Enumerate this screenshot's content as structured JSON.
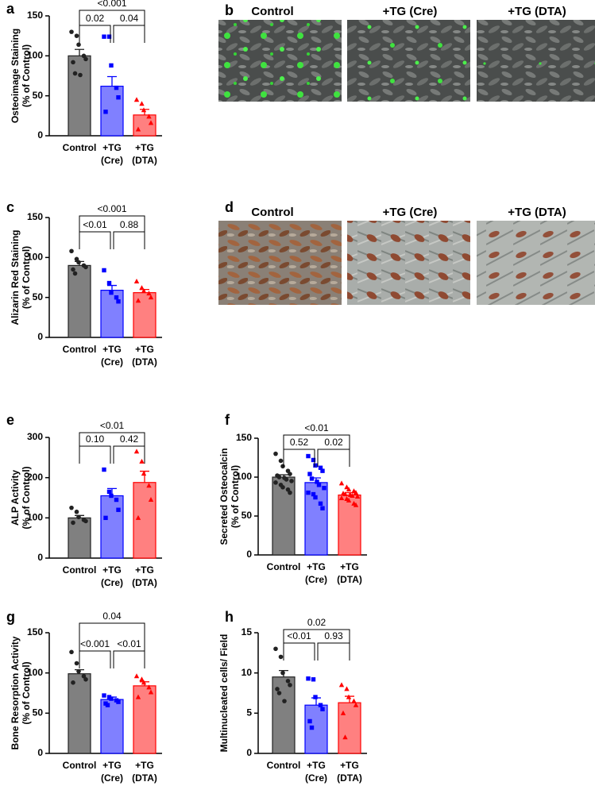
{
  "chart_data": [
    {
      "type": "bar",
      "panel": "a",
      "ylabel": [
        "Osteoimage Staining",
        "(% of Control)"
      ],
      "categories": [
        [
          "Control"
        ],
        [
          "+TG",
          "(Cre)"
        ],
        [
          "+TG",
          "(DTA)"
        ]
      ],
      "values": [
        100,
        62,
        26
      ],
      "errors": [
        8,
        12,
        7
      ],
      "points": [
        [
          130,
          125,
          114,
          100,
          96,
          92,
          78,
          76
        ],
        [
          124,
          124,
          88,
          60,
          48,
          30
        ],
        [
          45,
          40,
          32,
          24,
          16,
          8
        ]
      ],
      "colors": [
        "#808080",
        "#8080ff",
        "#ff8080"
      ],
      "edge_colors": [
        "#222222",
        "#0000ff",
        "#ff0000"
      ],
      "markers": [
        "circle",
        "square",
        "triangle"
      ],
      "comparisons": [
        "0.02",
        "0.04",
        "<0.001"
      ],
      "ylim": [
        0,
        150
      ],
      "yticks": [
        0,
        50,
        100,
        150
      ]
    },
    {
      "type": "bar",
      "panel": "c",
      "ylabel": [
        "Alizarin Red Staining",
        "(% of Control)"
      ],
      "categories": [
        [
          "Control"
        ],
        [
          "+TG",
          "(Cre)"
        ],
        [
          "+TG",
          "(DTA)"
        ]
      ],
      "values": [
        90,
        59,
        56
      ],
      "errors": [
        5,
        6,
        4
      ],
      "points": [
        [
          108,
          98,
          94,
          90,
          88,
          85,
          80
        ],
        [
          84,
          68,
          56,
          50,
          45
        ],
        [
          70,
          62,
          58,
          55,
          50,
          46
        ]
      ],
      "colors": [
        "#808080",
        "#8080ff",
        "#ff8080"
      ],
      "edge_colors": [
        "#222222",
        "#0000ff",
        "#ff0000"
      ],
      "markers": [
        "circle",
        "square",
        "triangle"
      ],
      "comparisons": [
        "<0.01",
        "0.88",
        "<0.001"
      ],
      "ylim": [
        0,
        150
      ],
      "yticks": [
        0,
        50,
        100,
        150
      ]
    },
    {
      "type": "bar",
      "panel": "e",
      "ylabel": [
        "ALP Activity",
        "(% of Control)"
      ],
      "categories": [
        [
          "Control"
        ],
        [
          "+TG",
          "(Cre)"
        ],
        [
          "+TG",
          "(DTA)"
        ]
      ],
      "values": [
        100,
        155,
        188
      ],
      "errors": [
        6,
        18,
        28
      ],
      "points": [
        [
          125,
          115,
          102,
          95,
          92,
          88
        ],
        [
          220,
          165,
          155,
          145,
          120,
          100
        ],
        [
          265,
          240,
          210,
          180,
          145,
          100
        ]
      ],
      "colors": [
        "#808080",
        "#8080ff",
        "#ff8080"
      ],
      "edge_colors": [
        "#222222",
        "#0000ff",
        "#ff0000"
      ],
      "markers": [
        "circle",
        "square",
        "triangle"
      ],
      "comparisons": [
        "0.10",
        "0.42",
        "<0.01"
      ],
      "ylim": [
        0,
        300
      ],
      "yticks": [
        0,
        100,
        200,
        300
      ]
    },
    {
      "type": "bar",
      "panel": "f",
      "ylabel": [
        "Secreted Osteocalcin",
        "(% of Control)"
      ],
      "categories": [
        [
          "Control"
        ],
        [
          "+TG",
          "(Cre)"
        ],
        [
          "+TG",
          "(DTA)"
        ]
      ],
      "values": [
        100,
        93,
        77
      ],
      "errors": [
        3,
        6,
        3
      ],
      "points": [
        [
          130,
          121,
          114,
          108,
          104,
          102,
          100,
          99,
          97,
          95,
          93,
          90,
          87,
          84,
          80
        ],
        [
          127,
          122,
          115,
          112,
          108,
          104,
          98,
          94,
          90,
          86,
          80,
          78,
          74,
          66,
          60
        ],
        [
          92,
          87,
          84,
          82,
          80,
          79,
          78,
          77,
          76,
          75,
          73,
          72,
          70,
          66,
          64
        ]
      ],
      "colors": [
        "#808080",
        "#8080ff",
        "#ff8080"
      ],
      "edge_colors": [
        "#222222",
        "#0000ff",
        "#ff0000"
      ],
      "markers": [
        "circle",
        "square",
        "triangle"
      ],
      "comparisons": [
        "0.52",
        "0.02",
        "<0.01"
      ],
      "ylim": [
        0,
        150
      ],
      "yticks": [
        0,
        50,
        100,
        150
      ]
    },
    {
      "type": "bar",
      "panel": "g",
      "ylabel": [
        "Bone Resorption Activity",
        "(% of Control)"
      ],
      "categories": [
        [
          "Control"
        ],
        [
          "+TG",
          "(Cre)"
        ],
        [
          "+TG",
          "(DTA)"
        ]
      ],
      "values": [
        99,
        67,
        84
      ],
      "errors": [
        5,
        3,
        5
      ],
      "points": [
        [
          126,
          112,
          102,
          96,
          92,
          88
        ],
        [
          72,
          70,
          68,
          66,
          64,
          62,
          60
        ],
        [
          96,
          92,
          88,
          82,
          76,
          70
        ]
      ],
      "colors": [
        "#808080",
        "#8080ff",
        "#ff8080"
      ],
      "edge_colors": [
        "#222222",
        "#0000ff",
        "#ff0000"
      ],
      "markers": [
        "circle",
        "square",
        "triangle"
      ],
      "comparisons": [
        "<0.001",
        "<0.01",
        "0.04"
      ],
      "ylim": [
        0,
        150
      ],
      "yticks": [
        0,
        50,
        100,
        150
      ]
    },
    {
      "type": "bar",
      "panel": "h",
      "ylabel": [
        "Multinucleated cells/ Field"
      ],
      "categories": [
        [
          "Control"
        ],
        [
          "+TG",
          "(Cre)"
        ],
        [
          "+TG",
          "(DTA)"
        ]
      ],
      "values": [
        9.5,
        6,
        6.3
      ],
      "errors": [
        0.8,
        0.9,
        0.8
      ],
      "points": [
        [
          13,
          12,
          10,
          9,
          8.5,
          8,
          7.5,
          6.5
        ],
        [
          9.3,
          9.2,
          7,
          6,
          5.5,
          4,
          3.2
        ],
        [
          8.5,
          8,
          7,
          6.5,
          6,
          5,
          2
        ]
      ],
      "colors": [
        "#808080",
        "#8080ff",
        "#ff8080"
      ],
      "edge_colors": [
        "#222222",
        "#0000ff",
        "#ff0000"
      ],
      "markers": [
        "circle",
        "square",
        "triangle"
      ],
      "comparisons": [
        "<0.01",
        "0.93",
        "0.02"
      ],
      "ylim": [
        0,
        15
      ],
      "yticks": [
        0,
        5,
        10,
        15
      ]
    }
  ],
  "image_panels": [
    {
      "panel": "b",
      "titles": [
        "Control",
        "+TG (Cre)",
        "+TG (DTA)"
      ]
    },
    {
      "panel": "d",
      "titles": [
        "Control",
        "+TG (Cre)",
        "+TG (DTA)"
      ]
    }
  ]
}
